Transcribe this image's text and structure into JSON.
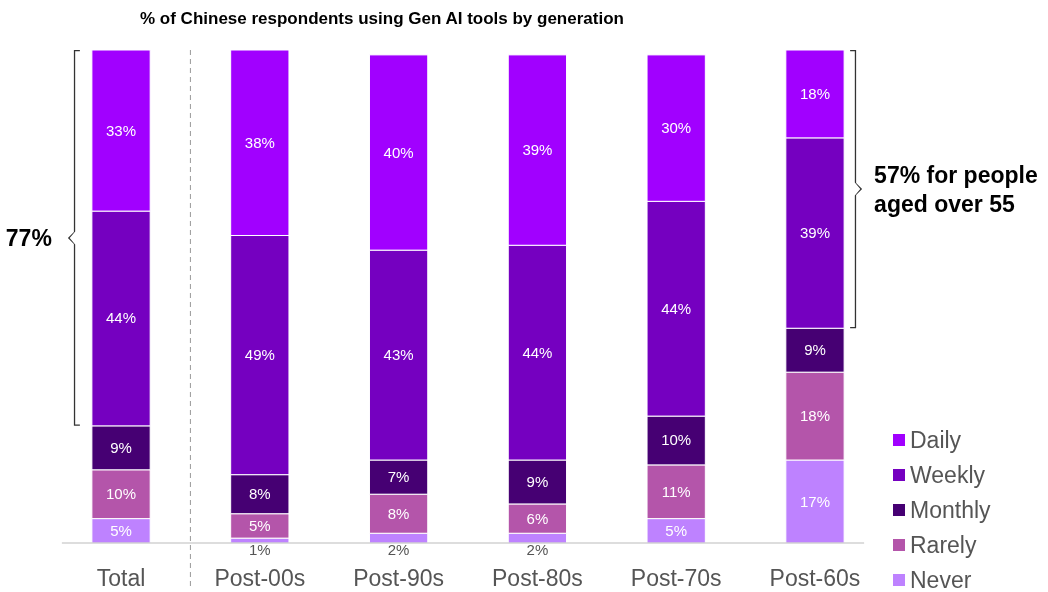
{
  "chart_data": {
    "type": "bar",
    "stacked": true,
    "title": "% of Chinese respondents using Gen AI tools by generation",
    "categories": [
      "Total",
      "Post-00s",
      "Post-90s",
      "Post-80s",
      "Post-70s",
      "Post-60s"
    ],
    "series": [
      {
        "name": "Never",
        "color": "#be82ff",
        "values": [
          5,
          1,
          2,
          2,
          5,
          17
        ],
        "value_labels": [
          "5%",
          "1%",
          "2%",
          "2%",
          "5%",
          "17%"
        ]
      },
      {
        "name": "Rarely",
        "color": "#b455aa",
        "values": [
          10,
          5,
          8,
          6,
          11,
          18
        ],
        "value_labels": [
          "10%",
          "5%",
          "8%",
          "6%",
          "11%",
          "18%"
        ]
      },
      {
        "name": "Monthly",
        "color": "#460073",
        "values": [
          9,
          8,
          7,
          9,
          10,
          9
        ],
        "value_labels": [
          "9%",
          "8%",
          "7%",
          "9%",
          "10%",
          "9%"
        ]
      },
      {
        "name": "Weekly",
        "color": "#7500c0",
        "values": [
          44,
          49,
          43,
          44,
          44,
          39
        ],
        "value_labels": [
          "44%",
          "49%",
          "43%",
          "44%",
          "44%",
          "39%"
        ]
      },
      {
        "name": "Daily",
        "color": "#a100ff",
        "values": [
          33,
          38,
          40,
          39,
          30,
          18
        ],
        "value_labels": [
          "33%",
          "38%",
          "40%",
          "39%",
          "30%",
          "18%"
        ]
      }
    ],
    "legend": "bottom right",
    "annotations": [
      "77%",
      "57% for people aged over 55"
    ]
  }
}
